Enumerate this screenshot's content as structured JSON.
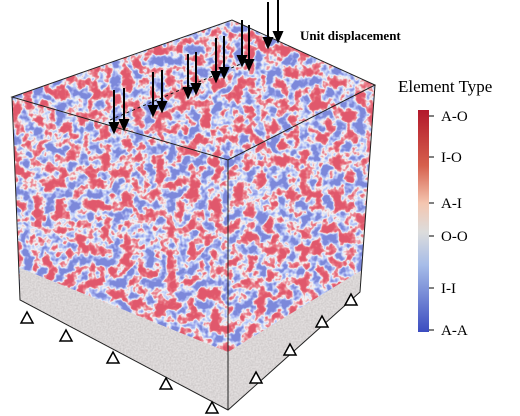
{
  "figure": {
    "annotation": "Unit displacement",
    "legend": {
      "title": "Element Type",
      "labels": [
        "A-O",
        "I-O",
        "A-I",
        "O-O",
        "I-I",
        "A-A"
      ]
    }
  }
}
